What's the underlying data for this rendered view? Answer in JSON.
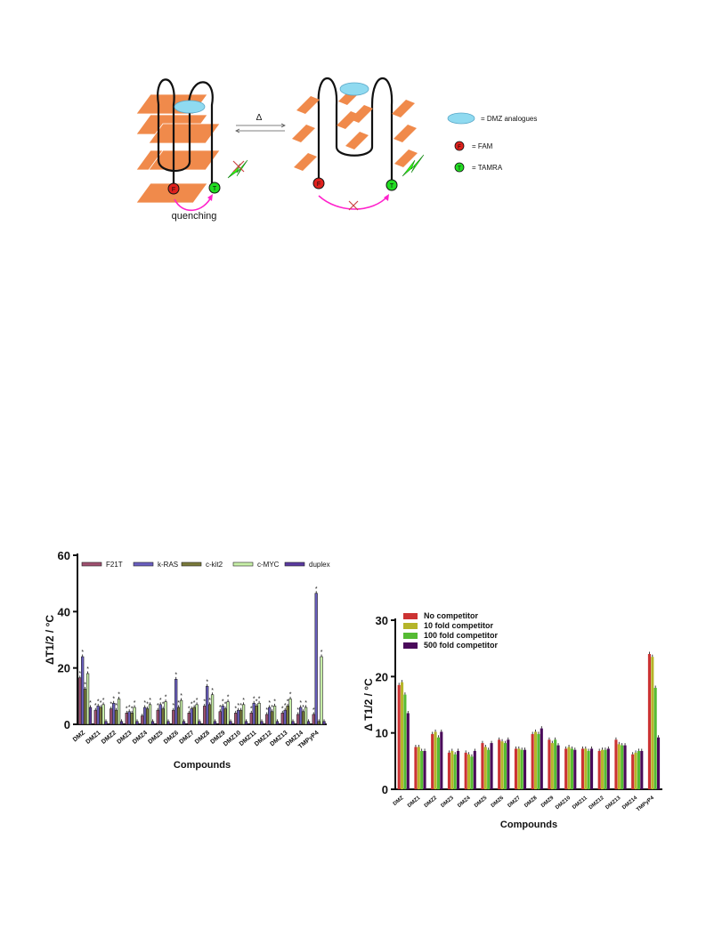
{
  "scheme": {
    "delta_label": "Δ",
    "quench_label": "quenching",
    "legend": [
      {
        "symbol": "ellipse",
        "text": "=   DMZ analogues"
      },
      {
        "symbol": "F",
        "text": "=   FAM"
      },
      {
        "symbol": "T",
        "text": "=   TAMRA"
      }
    ],
    "colors": {
      "plate": "#f08a4b",
      "ligand": "#8fdaf0",
      "fam": "#e0211d",
      "tamra": "#22dd22",
      "arc": "#ff22cc",
      "flash": "#33ff11"
    }
  },
  "chart_data": [
    {
      "type": "bar",
      "title": "",
      "xlabel": "Compounds",
      "ylabel": "ΔT1/2 / °C",
      "ylim": [
        0,
        60
      ],
      "yticks": [
        0,
        20,
        40,
        60
      ],
      "categories": [
        "DMZ",
        "DMZ1",
        "DMZ2",
        "DMZ3",
        "DMZ4",
        "DMZ5",
        "DMZ6",
        "DMZ7",
        "DMZ8",
        "DMZ9",
        "DMZ10",
        "DMZ11",
        "DMZ12",
        "DMZ13",
        "DMZ14",
        "TMPyP4"
      ],
      "series": [
        {
          "name": "F21T",
          "color": "#a05070",
          "values": [
            16.5,
            5,
            5.5,
            4,
            3,
            5,
            5,
            4,
            6.5,
            4.5,
            4,
            4,
            3.5,
            4,
            3.5,
            3.5
          ]
        },
        {
          "name": "k-RAS",
          "color": "#6a5fc0",
          "values": [
            24,
            6.5,
            7.5,
            4.5,
            6,
            7,
            16,
            5.5,
            13.5,
            6.5,
            5,
            7.5,
            6,
            5,
            6,
            46.5
          ]
        },
        {
          "name": "c-kit2",
          "color": "#7a7a3a",
          "values": [
            12.5,
            6,
            5,
            4,
            5.5,
            5.5,
            6,
            6,
            7,
            5.5,
            5,
            6.5,
            4.5,
            6.5,
            4.5,
            1
          ]
        },
        {
          "name": "c-MYC",
          "color": "#c8f0a8",
          "values": [
            18,
            7,
            9,
            6,
            7,
            8,
            8.5,
            7,
            10.5,
            8,
            7,
            7.5,
            6.5,
            9,
            6,
            24
          ]
        },
        {
          "name": "duplex",
          "color": "#5a3aa0",
          "values": [
            6,
            1,
            1,
            1,
            1,
            1,
            1,
            1,
            1,
            1,
            1,
            1,
            1,
            1,
            1,
            1
          ]
        }
      ],
      "legend": "top"
    },
    {
      "type": "bar",
      "title": "",
      "xlabel": "Compounds",
      "ylabel": "Δ T1/2 / °C",
      "ylim": [
        0,
        30
      ],
      "yticks": [
        0,
        10,
        20,
        30
      ],
      "categories": [
        "DMZ",
        "DMZ1",
        "DMZ2",
        "DMZ3",
        "DMZ4",
        "DMZ5",
        "DMZ6",
        "DMZ7",
        "DMZ8",
        "DMZ9",
        "DMZ10",
        "DMZ11",
        "DMZ12",
        "DMZ13",
        "DMZ14",
        "TMPyP4"
      ],
      "series": [
        {
          "name": "No competitor",
          "color": "#cc3333",
          "values": [
            18.5,
            7.5,
            9.8,
            6.5,
            6.5,
            8.2,
            8.8,
            7.2,
            9.8,
            8.8,
            7.2,
            7.2,
            6.8,
            8.8,
            6.2,
            24
          ]
        },
        {
          "name": "10 fold competitor",
          "color": "#b5b52a",
          "values": [
            19,
            7.5,
            10.2,
            6.8,
            6.2,
            7.5,
            8.5,
            7.2,
            10.2,
            8.2,
            7.5,
            7.2,
            7,
            8,
            6.5,
            23.5
          ]
        },
        {
          "name": "100 fold competitor",
          "color": "#55bb33",
          "values": [
            16.8,
            6.8,
            9.2,
            6.2,
            5.8,
            7,
            8.2,
            7,
            9.8,
            8.8,
            7.2,
            6.8,
            7,
            7.8,
            6.8,
            18
          ]
        },
        {
          "name": "500 fold competitor",
          "color": "#4a0a5a",
          "values": [
            13.5,
            6.8,
            10.2,
            6.8,
            6.8,
            8.2,
            8.8,
            7,
            10.8,
            7.8,
            7,
            7.2,
            7.2,
            7.8,
            6.8,
            9.2
          ]
        }
      ],
      "legend": "top-left"
    }
  ]
}
